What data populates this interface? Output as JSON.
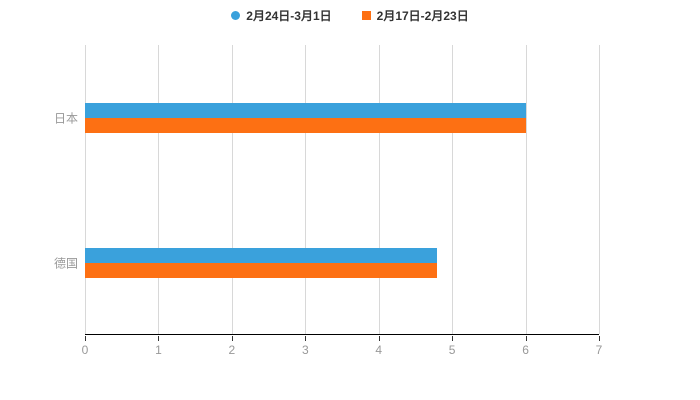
{
  "chart_data": {
    "type": "bar",
    "orientation": "horizontal",
    "title": "",
    "categories": [
      "日本",
      "德国"
    ],
    "series": [
      {
        "name": "2月24日-3月1日",
        "color": "#3aa1dc",
        "marker": "circle",
        "values": [
          6,
          4.8
        ]
      },
      {
        "name": "2月17日-2月23日",
        "color": "#fd7013",
        "marker": "square",
        "values": [
          6,
          4.8
        ]
      }
    ],
    "xlabel": "",
    "ylabel": "",
    "xlim": [
      0,
      7
    ],
    "xticks": [
      0,
      1,
      2,
      3,
      4,
      5,
      6,
      7
    ],
    "grid": true,
    "legend_position": "top"
  },
  "colors": {
    "background": "#ffffff",
    "grid": "#d8d8d8",
    "axis": "#000000",
    "tick_label": "#999999",
    "category_label": "#999999",
    "legend_text": "#333333"
  }
}
